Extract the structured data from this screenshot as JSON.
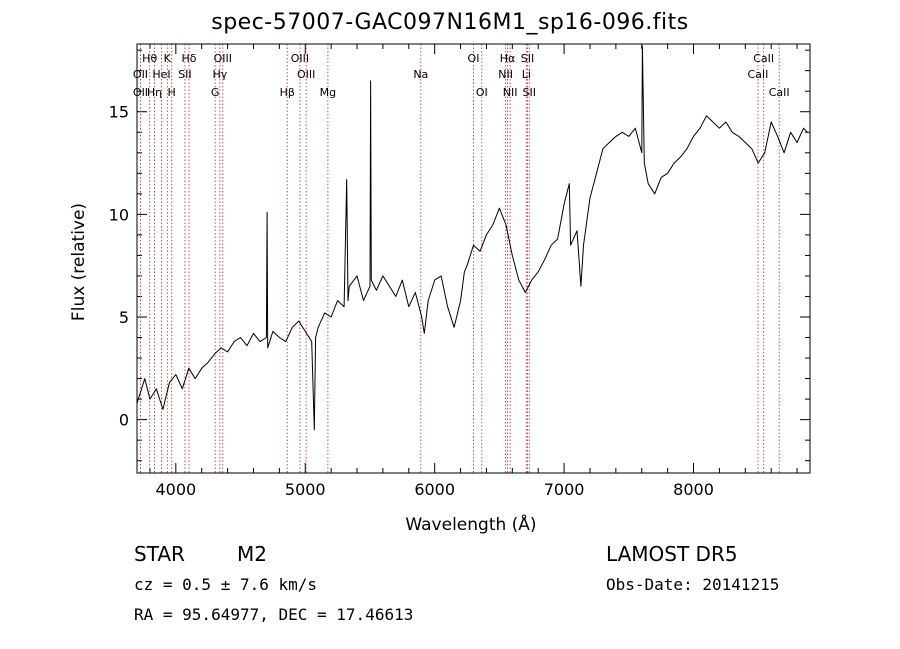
{
  "title": "spec-57007-GAC097N16M1_sp16-096.fits",
  "info": {
    "class": "STAR",
    "subclass": "M2",
    "survey": "LAMOST DR5",
    "cz": "cz = 0.5 ± 7.6 km/s",
    "obs_date": "Obs-Date: 20141215",
    "coords": "RA =  95.64977, DEC =  17.46613"
  },
  "chart_data": {
    "type": "line",
    "xlabel": "Wavelength (Å)",
    "ylabel": "Flux (relative)",
    "xlim": [
      3700,
      8900
    ],
    "ylim": [
      -2.6,
      18.3
    ],
    "x_ticks": [
      4000,
      5000,
      6000,
      7000,
      8000
    ],
    "y_ticks": [
      0,
      5,
      10,
      15
    ],
    "grid": false,
    "series": [
      {
        "x": [
          3700,
          3760,
          3800,
          3850,
          3900,
          3950,
          4000,
          4050,
          4100,
          4150,
          4200,
          4250,
          4300,
          4350,
          4400,
          4450,
          4500,
          4550,
          4600,
          4650,
          4700,
          4705,
          4710,
          4750,
          4800,
          4850,
          4900,
          4950,
          5000,
          5050,
          5070,
          5080,
          5100,
          5150,
          5200,
          5250,
          5300,
          5320,
          5330,
          5340,
          5400,
          5450,
          5500,
          5505,
          5510,
          5550,
          5600,
          5650,
          5700,
          5750,
          5800,
          5850,
          5900,
          5920,
          5950,
          6000,
          6050,
          6100,
          6150,
          6200,
          6230,
          6250,
          6300,
          6350,
          6400,
          6450,
          6500,
          6550,
          6600,
          6650,
          6700,
          6750,
          6800,
          6850,
          6900,
          6950,
          7000,
          7040,
          7050,
          7100,
          7130,
          7150,
          7200,
          7250,
          7300,
          7350,
          7400,
          7450,
          7500,
          7550,
          7600,
          7605,
          7620,
          7650,
          7700,
          7750,
          7800,
          7850,
          7900,
          7950,
          8000,
          8050,
          8100,
          8150,
          8200,
          8250,
          8300,
          8350,
          8400,
          8450,
          8500,
          8550,
          8600,
          8650,
          8700,
          8750,
          8800,
          8850,
          8880
        ],
        "y": [
          0.8,
          2.0,
          1.0,
          1.5,
          0.5,
          1.8,
          2.2,
          1.5,
          2.5,
          2.0,
          2.5,
          2.8,
          3.2,
          3.5,
          3.3,
          3.8,
          4.0,
          3.6,
          4.2,
          3.8,
          4.0,
          10.1,
          3.5,
          4.3,
          4.0,
          3.8,
          4.5,
          4.8,
          4.3,
          3.8,
          -0.5,
          4.0,
          4.5,
          5.2,
          5.0,
          5.8,
          5.5,
          11.7,
          5.8,
          6.5,
          7.0,
          5.8,
          6.5,
          16.5,
          6.8,
          6.3,
          7.0,
          6.5,
          6.0,
          6.8,
          5.5,
          6.2,
          5.0,
          4.2,
          5.8,
          6.8,
          7.0,
          5.5,
          4.5,
          5.8,
          7.2,
          7.5,
          8.5,
          8.2,
          9.0,
          9.5,
          10.3,
          9.5,
          8.0,
          6.8,
          6.2,
          6.8,
          7.2,
          7.8,
          8.5,
          8.8,
          10.5,
          11.5,
          8.5,
          9.2,
          6.5,
          8.5,
          10.8,
          12.0,
          13.2,
          13.5,
          13.8,
          14.0,
          13.8,
          14.2,
          13.0,
          18.2,
          12.5,
          11.5,
          11.0,
          11.8,
          12.0,
          12.5,
          12.8,
          13.2,
          13.8,
          14.2,
          14.8,
          14.5,
          14.2,
          14.5,
          14.0,
          13.8,
          13.5,
          13.2,
          12.5,
          13.0,
          14.5,
          13.8,
          13.0,
          14.0,
          13.5,
          14.2,
          14.0
        ]
      }
    ],
    "lines": [
      {
        "label": "Hθ",
        "x": 3798,
        "row": 0
      },
      {
        "label": "K",
        "x": 3934,
        "row": 0
      },
      {
        "label": "Hδ",
        "x": 4102,
        "row": 0
      },
      {
        "label": "OIII",
        "x": 4363,
        "row": 0
      },
      {
        "label": "OIII",
        "x": 4959,
        "row": 0
      },
      {
        "label": "OI",
        "x": 6300,
        "row": 0
      },
      {
        "label": "Hα",
        "x": 6563,
        "row": 0
      },
      {
        "label": "SII",
        "x": 6717,
        "row": 0
      },
      {
        "label": "CaII",
        "x": 8542,
        "row": 0
      },
      {
        "label": "OII",
        "x": 3727,
        "row": 1
      },
      {
        "label": "HeI",
        "x": 3889,
        "row": 1
      },
      {
        "label": "SII",
        "x": 4070,
        "row": 1
      },
      {
        "label": "Hγ",
        "x": 4340,
        "row": 1
      },
      {
        "label": "OIII",
        "x": 5007,
        "row": 1
      },
      {
        "label": "Na",
        "x": 5893,
        "row": 1
      },
      {
        "label": "NII",
        "x": 6548,
        "row": 1
      },
      {
        "label": "Li",
        "x": 6708,
        "row": 1
      },
      {
        "label": "CaII",
        "x": 8498,
        "row": 1
      },
      {
        "label": "OII",
        "x": 3727,
        "row": 2
      },
      {
        "label": "Hη",
        "x": 3835,
        "row": 2
      },
      {
        "label": "H",
        "x": 3968,
        "row": 2
      },
      {
        "label": "G",
        "x": 4304,
        "row": 2
      },
      {
        "label": "Hβ",
        "x": 4861,
        "row": 2
      },
      {
        "label": "Mg",
        "x": 5175,
        "row": 2
      },
      {
        "label": "OI",
        "x": 6364,
        "row": 2
      },
      {
        "label": "NII",
        "x": 6583,
        "row": 2
      },
      {
        "label": "SII",
        "x": 6731,
        "row": 2
      },
      {
        "label": "CaII",
        "x": 8662,
        "row": 2
      }
    ]
  }
}
